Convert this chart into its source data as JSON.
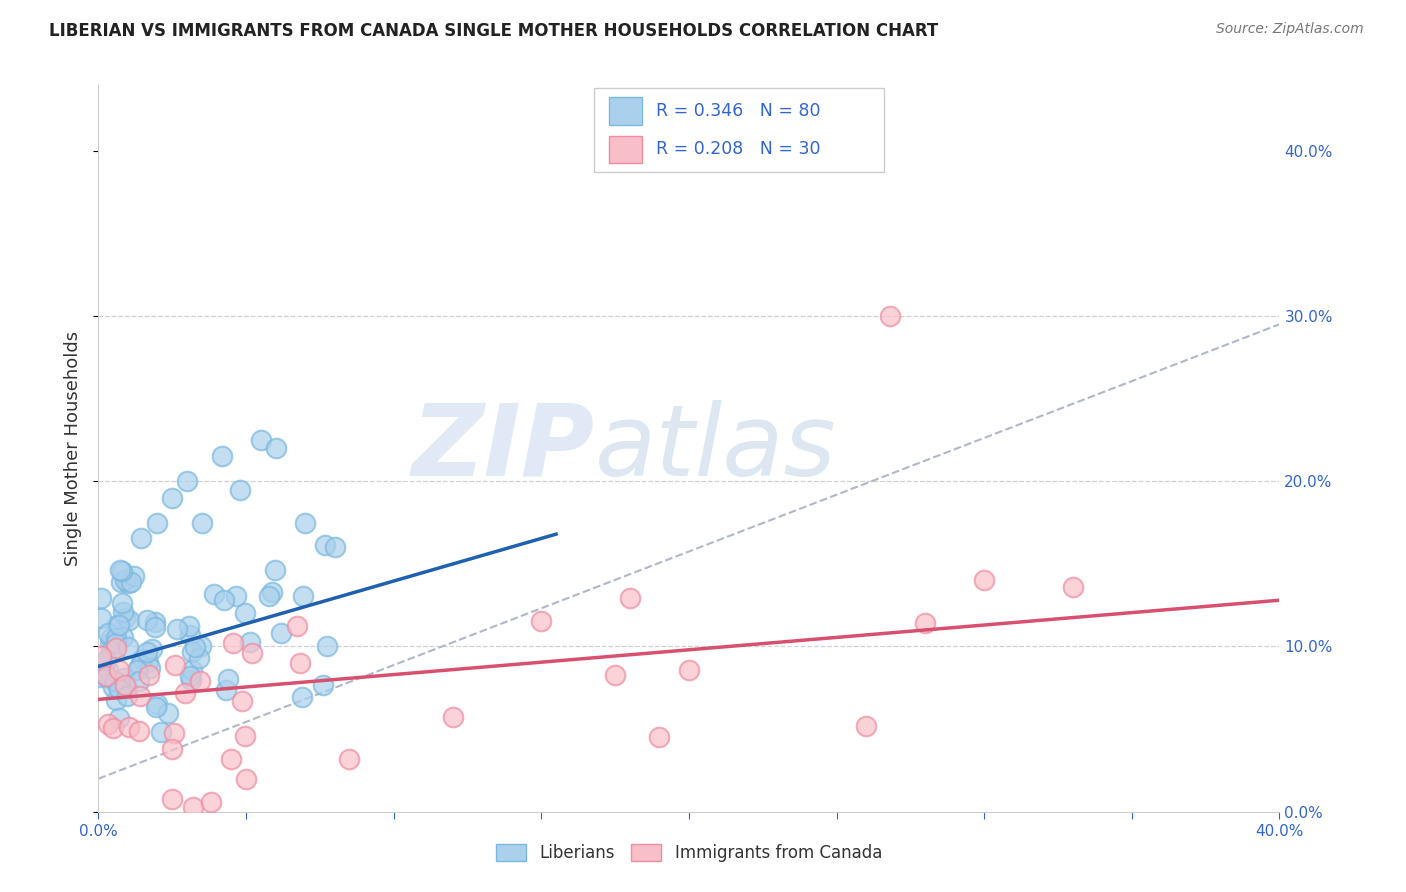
{
  "title": "LIBERIAN VS IMMIGRANTS FROM CANADA SINGLE MOTHER HOUSEHOLDS CORRELATION CHART",
  "source": "Source: ZipAtlas.com",
  "ylabel": "Single Mother Households",
  "xlim": [
    0.0,
    0.4
  ],
  "ylim": [
    0.0,
    0.44
  ],
  "liberian_color": "#7ab8e0",
  "liberian_fill": "#aad0ec",
  "canada_color": "#f08ca0",
  "canada_fill": "#f8bfc8",
  "liberian_line_color": "#2060b0",
  "canada_line_color": "#d85070",
  "watermark_zip": "ZIP",
  "watermark_atlas": "atlas",
  "background_color": "#ffffff",
  "grid_color": "#d0d0d0",
  "blue_line_x0": 0.0,
  "blue_line_x1": 0.155,
  "blue_line_y0": 0.088,
  "blue_line_y1": 0.168,
  "pink_line_x0": 0.0,
  "pink_line_x1": 0.4,
  "pink_line_y0": 0.068,
  "pink_line_y1": 0.128,
  "gray_line_x0": 0.0,
  "gray_line_x1": 0.4,
  "gray_line_y0": 0.02,
  "gray_line_y1": 0.295,
  "legend_R1": "R = 0.346",
  "legend_N1": "N = 80",
  "legend_R2": "R = 0.208",
  "legend_N2": "N = 30",
  "legend_label1": "Liberians",
  "legend_label2": "Immigrants from Canada"
}
